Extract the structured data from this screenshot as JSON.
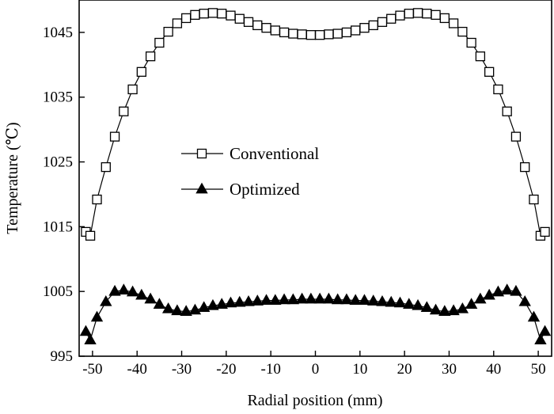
{
  "chart_data": {
    "type": "line",
    "xlabel": "Radial position (mm)",
    "ylabel": "Temperature (℃)",
    "xlim": [
      -53,
      53
    ],
    "ylim": [
      995,
      1050
    ],
    "xticks": [
      -50,
      -40,
      -30,
      -20,
      -10,
      0,
      10,
      20,
      30,
      40,
      50
    ],
    "yticks": [
      995,
      1005,
      1015,
      1025,
      1035,
      1045
    ],
    "legend_position": "center-left",
    "series": [
      {
        "name": "Conventional",
        "marker": "open-square",
        "x": [
          -51.5,
          -50.5,
          -49,
          -47,
          -45,
          -43,
          -41,
          -39,
          -37,
          -35,
          -33,
          -31,
          -29,
          -27,
          -25,
          -23,
          -21,
          -19,
          -17,
          -15,
          -13,
          -11,
          -9,
          -7,
          -5,
          -3,
          -1,
          1,
          3,
          5,
          7,
          9,
          11,
          13,
          15,
          17,
          19,
          21,
          23,
          25,
          27,
          29,
          31,
          33,
          35,
          37,
          39,
          41,
          43,
          45,
          47,
          49,
          50.5,
          51.5
        ],
        "values": [
          1014.2,
          1013.6,
          1019.2,
          1024.2,
          1028.9,
          1032.8,
          1036.2,
          1038.9,
          1041.3,
          1043.4,
          1045.1,
          1046.4,
          1047.2,
          1047.7,
          1047.9,
          1048.0,
          1047.9,
          1047.6,
          1047.1,
          1046.6,
          1046.1,
          1045.7,
          1045.3,
          1045.0,
          1044.8,
          1044.7,
          1044.6,
          1044.6,
          1044.7,
          1044.8,
          1045.0,
          1045.3,
          1045.7,
          1046.1,
          1046.6,
          1047.1,
          1047.6,
          1047.9,
          1048.0,
          1047.9,
          1047.7,
          1047.2,
          1046.4,
          1045.1,
          1043.4,
          1041.3,
          1038.9,
          1036.2,
          1032.8,
          1028.9,
          1024.2,
          1019.2,
          1013.6,
          1014.2
        ]
      },
      {
        "name": "Optimized",
        "marker": "filled-triangle",
        "x": [
          -51.5,
          -50.5,
          -49,
          -47,
          -45,
          -43,
          -41,
          -39,
          -37,
          -35,
          -33,
          -31,
          -29,
          -27,
          -25,
          -23,
          -21,
          -19,
          -17,
          -15,
          -13,
          -11,
          -9,
          -7,
          -5,
          -3,
          -1,
          1,
          3,
          5,
          7,
          9,
          11,
          13,
          15,
          17,
          19,
          21,
          23,
          25,
          27,
          29,
          31,
          33,
          35,
          37,
          39,
          41,
          43,
          45,
          47,
          49,
          50.5,
          51.5
        ],
        "values": [
          998.8,
          997.5,
          1001.0,
          1003.4,
          1005.0,
          1005.2,
          1004.9,
          1004.4,
          1003.8,
          1003.0,
          1002.3,
          1002.0,
          1001.9,
          1002.1,
          1002.5,
          1002.8,
          1003.0,
          1003.2,
          1003.3,
          1003.4,
          1003.5,
          1003.6,
          1003.6,
          1003.7,
          1003.7,
          1003.8,
          1003.8,
          1003.8,
          1003.8,
          1003.7,
          1003.7,
          1003.6,
          1003.6,
          1003.5,
          1003.4,
          1003.3,
          1003.2,
          1003.0,
          1002.8,
          1002.5,
          1002.1,
          1001.9,
          1002.0,
          1002.3,
          1003.0,
          1003.8,
          1004.4,
          1004.9,
          1005.2,
          1005.0,
          1003.4,
          1001.0,
          997.5,
          998.8
        ]
      }
    ]
  }
}
